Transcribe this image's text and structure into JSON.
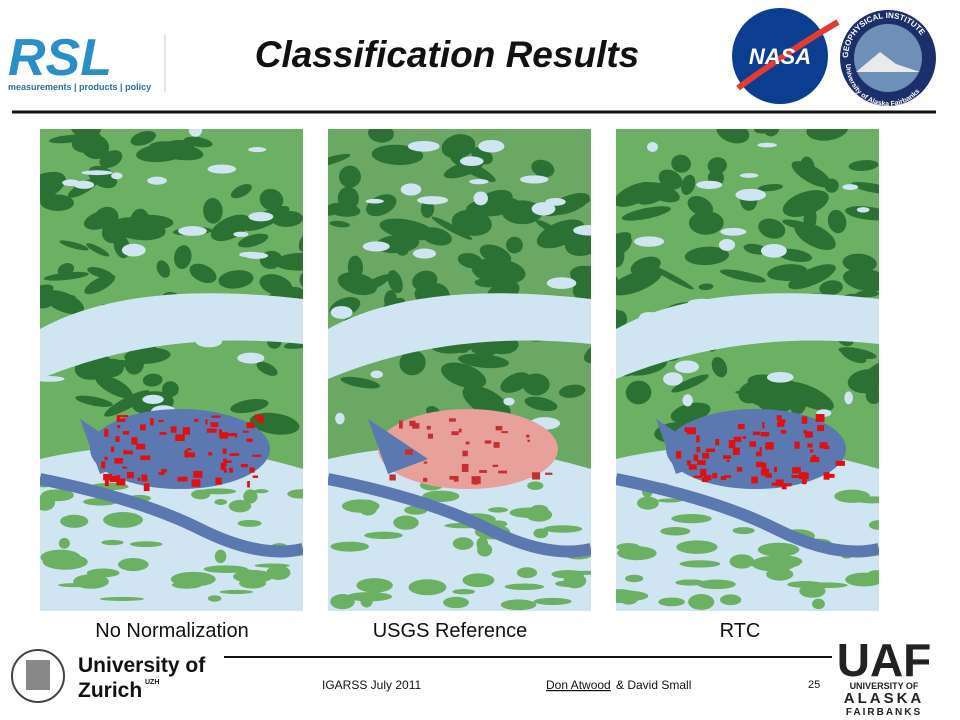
{
  "header": {
    "title": "Classification Results",
    "logos": {
      "rsl": "RSL",
      "rsl_tagline": "measurements | products | policy",
      "nasa": "NASA",
      "gi_top": "GEOPHYSICAL INSTITUTE",
      "gi_bottom": "University of Alaska Fairbanks"
    }
  },
  "panels": [
    {
      "caption": "No Normalization"
    },
    {
      "caption": "USGS Reference"
    },
    {
      "caption": "RTC"
    }
  ],
  "footer": {
    "uzh_line1": "University of",
    "uzh_line2": "Zurich",
    "uzh_sup": "UZH",
    "event": "IGARSS July 2011",
    "author1": "Don Atwood",
    "author2": "& David Small",
    "page": "25",
    "uaf": "UAF",
    "uaf_line1": "UNIVERSITY OF",
    "uaf_line2": "ALASKA",
    "uaf_line3": "FAIRBANKS"
  }
}
